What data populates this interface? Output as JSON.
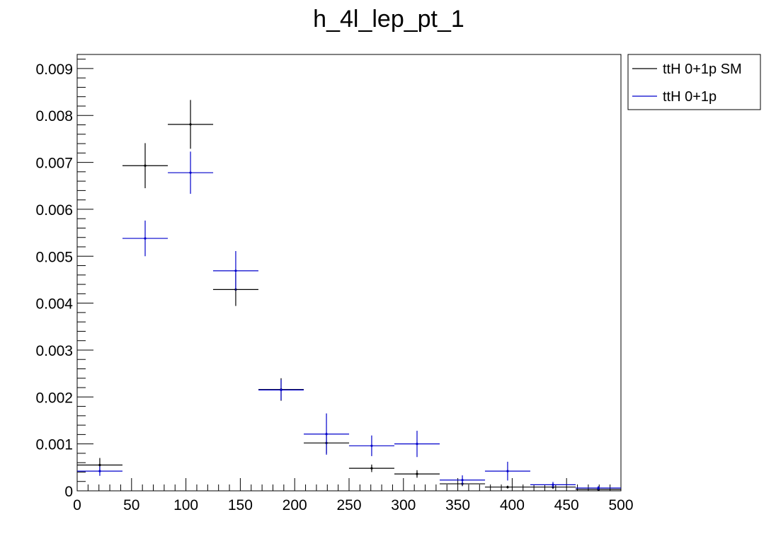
{
  "chart_data": {
    "type": "scatter",
    "title": "h_4l_lep_pt_1",
    "xlabel": "",
    "ylabel": "",
    "xlim": [
      0,
      500
    ],
    "ylim": [
      0,
      0.0093
    ],
    "x_ticks": [
      0,
      50,
      100,
      150,
      200,
      250,
      300,
      350,
      400,
      450,
      500
    ],
    "x_tick_labels": [
      "0",
      "50",
      "100",
      "150",
      "200",
      "250",
      "300",
      "350",
      "400",
      "450",
      "500"
    ],
    "y_ticks": [
      0,
      0.001,
      0.002,
      0.003,
      0.004,
      0.005,
      0.006,
      0.007,
      0.008,
      0.009
    ],
    "y_tick_labels": [
      "0",
      "0.001",
      "0.002",
      "0.003",
      "0.004",
      "0.005",
      "0.006",
      "0.007",
      "0.008",
      "0.009"
    ],
    "grid": false,
    "legend_position": "top-right, outside plot area",
    "bin_width": 41.67,
    "bin_centers": [
      20.8,
      62.5,
      104.2,
      145.8,
      187.5,
      229.2,
      270.8,
      312.5,
      354.2,
      395.8,
      437.5,
      479.2
    ],
    "series": [
      {
        "name": "ttH 0+1p SM",
        "color": "#000000",
        "values": [
          0.00055,
          0.00693,
          0.00781,
          0.00429,
          0.00216,
          0.00102,
          0.00048,
          0.00036,
          0.00015,
          8e-05,
          8e-05,
          3e-05
        ],
        "errors": [
          0.00015,
          0.00048,
          0.00052,
          0.00035,
          0.00024,
          0.00022,
          8e-05,
          8e-05,
          5e-05,
          3e-05,
          4e-05,
          2e-05
        ]
      },
      {
        "name": "ttH 0+1p",
        "color": "#0000cc",
        "values": [
          0.00042,
          0.00538,
          0.00678,
          0.00469,
          0.00215,
          0.00121,
          0.00096,
          0.001,
          0.00023,
          0.00042,
          0.00013,
          6e-05
        ],
        "errors": [
          0.0001,
          0.00038,
          0.00045,
          0.00042,
          0.00022,
          0.00044,
          0.00022,
          0.00028,
          0.0001,
          0.0002,
          6e-05,
          4e-05
        ]
      }
    ]
  }
}
